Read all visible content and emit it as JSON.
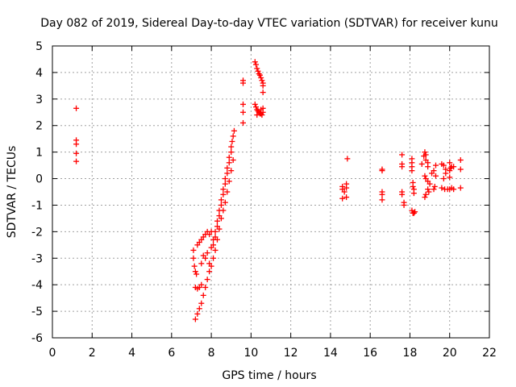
{
  "chart_data": {
    "type": "scatter",
    "title": "Day 082 of 2019, Sidereal Day-to-day VTEC variation (SDTVAR) for receiver kunu",
    "xlabel": "GPS time / hours",
    "ylabel": "SDTVAR / TECUs",
    "xlim": [
      0,
      22
    ],
    "ylim": [
      -6,
      5
    ],
    "xticks": [
      0,
      2,
      4,
      6,
      8,
      10,
      12,
      14,
      16,
      18,
      20,
      22
    ],
    "yticks": [
      -6,
      -5,
      -4,
      -3,
      -2,
      -1,
      0,
      1,
      2,
      3,
      4,
      5
    ],
    "grid": true,
    "marker": "+",
    "series_color": "#ff0000",
    "series": [
      {
        "name": "SDTVAR",
        "points": [
          [
            1.2,
            2.65
          ],
          [
            1.2,
            1.45
          ],
          [
            1.2,
            1.3
          ],
          [
            1.2,
            0.95
          ],
          [
            1.2,
            0.65
          ],
          [
            7.2,
            -5.3
          ],
          [
            7.3,
            -5.1
          ],
          [
            7.4,
            -4.9
          ],
          [
            7.5,
            -4.7
          ],
          [
            7.6,
            -4.4
          ],
          [
            7.7,
            -4.1
          ],
          [
            7.8,
            -3.8
          ],
          [
            7.9,
            -3.5
          ],
          [
            7.9,
            -3.2
          ],
          [
            7.2,
            -4.1
          ],
          [
            7.3,
            -4.15
          ],
          [
            7.4,
            -4.1
          ],
          [
            7.5,
            -4.0
          ],
          [
            7.1,
            -2.7
          ],
          [
            7.1,
            -3.0
          ],
          [
            7.15,
            -3.3
          ],
          [
            7.2,
            -3.5
          ],
          [
            7.25,
            -3.6
          ],
          [
            7.3,
            -2.5
          ],
          [
            7.4,
            -2.4
          ],
          [
            7.5,
            -2.3
          ],
          [
            7.6,
            -2.2
          ],
          [
            7.7,
            -2.1
          ],
          [
            7.8,
            -2.0
          ],
          [
            7.9,
            -2.1
          ],
          [
            8.0,
            -2.0
          ],
          [
            7.5,
            -3.2
          ],
          [
            7.6,
            -2.9
          ],
          [
            7.7,
            -3.0
          ],
          [
            7.8,
            -2.8
          ],
          [
            8.0,
            -2.6
          ],
          [
            8.1,
            -2.5
          ],
          [
            8.1,
            -2.3
          ],
          [
            8.2,
            -2.2
          ],
          [
            8.2,
            -2.0
          ],
          [
            8.3,
            -1.8
          ],
          [
            8.3,
            -1.6
          ],
          [
            8.4,
            -1.4
          ],
          [
            8.4,
            -1.2
          ],
          [
            8.5,
            -1.0
          ],
          [
            8.5,
            -0.8
          ],
          [
            8.6,
            -0.6
          ],
          [
            8.6,
            -0.4
          ],
          [
            8.7,
            -0.2
          ],
          [
            8.7,
            0.0
          ],
          [
            8.8,
            0.2
          ],
          [
            8.8,
            0.4
          ],
          [
            8.9,
            0.6
          ],
          [
            8.9,
            0.8
          ],
          [
            9.0,
            1.0
          ],
          [
            9.0,
            1.2
          ],
          [
            9.05,
            1.4
          ],
          [
            9.1,
            1.6
          ],
          [
            9.15,
            1.8
          ],
          [
            8.0,
            -3.3
          ],
          [
            8.1,
            -3.0
          ],
          [
            8.2,
            -2.7
          ],
          [
            8.3,
            -2.3
          ],
          [
            8.4,
            -1.9
          ],
          [
            8.5,
            -1.5
          ],
          [
            8.6,
            -1.2
          ],
          [
            8.7,
            -0.9
          ],
          [
            8.8,
            -0.5
          ],
          [
            8.9,
            -0.1
          ],
          [
            9.0,
            0.3
          ],
          [
            9.1,
            0.7
          ],
          [
            9.6,
            3.7
          ],
          [
            9.6,
            3.6
          ],
          [
            9.6,
            2.8
          ],
          [
            9.6,
            2.5
          ],
          [
            9.6,
            2.1
          ],
          [
            10.2,
            4.4
          ],
          [
            10.25,
            4.3
          ],
          [
            10.3,
            4.15
          ],
          [
            10.35,
            4.05
          ],
          [
            10.4,
            3.95
          ],
          [
            10.45,
            3.9
          ],
          [
            10.5,
            3.8
          ],
          [
            10.55,
            3.7
          ],
          [
            10.6,
            3.6
          ],
          [
            10.6,
            3.5
          ],
          [
            10.6,
            3.25
          ],
          [
            10.2,
            2.8
          ],
          [
            10.25,
            2.7
          ],
          [
            10.3,
            2.6
          ],
          [
            10.35,
            2.55
          ],
          [
            10.4,
            2.5
          ],
          [
            10.45,
            2.45
          ],
          [
            10.5,
            2.45
          ],
          [
            10.55,
            2.4
          ],
          [
            10.6,
            2.5
          ],
          [
            10.6,
            2.65
          ],
          [
            10.3,
            2.4
          ],
          [
            10.5,
            2.6
          ],
          [
            14.6,
            -0.3
          ],
          [
            14.6,
            -0.4
          ],
          [
            14.6,
            -0.75
          ],
          [
            14.7,
            -0.5
          ],
          [
            14.8,
            -0.2
          ],
          [
            14.8,
            -0.35
          ],
          [
            14.8,
            -0.7
          ],
          [
            14.85,
            0.75
          ],
          [
            16.6,
            0.35
          ],
          [
            16.6,
            0.3
          ],
          [
            16.6,
            -0.5
          ],
          [
            16.6,
            -0.6
          ],
          [
            16.6,
            -0.8
          ],
          [
            17.6,
            0.9
          ],
          [
            17.6,
            0.55
          ],
          [
            17.6,
            0.45
          ],
          [
            17.6,
            -0.5
          ],
          [
            17.6,
            -0.6
          ],
          [
            17.7,
            -0.9
          ],
          [
            17.7,
            -1.0
          ],
          [
            18.1,
            0.75
          ],
          [
            18.1,
            0.6
          ],
          [
            18.1,
            0.45
          ],
          [
            18.1,
            0.3
          ],
          [
            18.15,
            -0.15
          ],
          [
            18.15,
            -0.3
          ],
          [
            18.2,
            -0.4
          ],
          [
            18.2,
            -0.55
          ],
          [
            18.1,
            -1.2
          ],
          [
            18.15,
            -1.3
          ],
          [
            18.2,
            -1.3
          ],
          [
            18.25,
            -1.25
          ],
          [
            18.6,
            0.55
          ],
          [
            18.7,
            0.85
          ],
          [
            18.75,
            1.0
          ],
          [
            18.8,
            0.9
          ],
          [
            18.8,
            0.7
          ],
          [
            18.9,
            0.6
          ],
          [
            18.9,
            0.45
          ],
          [
            18.75,
            0.1
          ],
          [
            18.8,
            0.0
          ],
          [
            18.9,
            -0.1
          ],
          [
            19.0,
            -0.2
          ],
          [
            18.9,
            -0.4
          ],
          [
            18.95,
            -0.5
          ],
          [
            18.8,
            -0.6
          ],
          [
            18.75,
            -0.7
          ],
          [
            19.1,
            0.2
          ],
          [
            19.2,
            0.3
          ],
          [
            19.3,
            0.5
          ],
          [
            19.3,
            0.1
          ],
          [
            19.25,
            -0.3
          ],
          [
            19.2,
            -0.4
          ],
          [
            19.6,
            0.55
          ],
          [
            19.7,
            0.5
          ],
          [
            19.8,
            0.35
          ],
          [
            19.8,
            0.2
          ],
          [
            19.7,
            0.0
          ],
          [
            19.6,
            -0.35
          ],
          [
            19.75,
            -0.4
          ],
          [
            19.9,
            -0.4
          ],
          [
            20.0,
            0.05
          ],
          [
            20.0,
            0.3
          ],
          [
            20.05,
            0.4
          ],
          [
            20.1,
            0.45
          ],
          [
            20.2,
            0.45
          ],
          [
            20.0,
            -0.4
          ],
          [
            20.1,
            -0.35
          ],
          [
            20.2,
            -0.4
          ],
          [
            20.0,
            0.6
          ],
          [
            20.55,
            0.7
          ],
          [
            20.55,
            0.35
          ],
          [
            20.55,
            -0.35
          ]
        ]
      }
    ]
  }
}
